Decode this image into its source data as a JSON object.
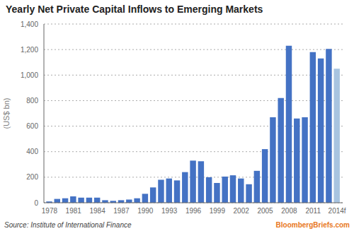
{
  "chart_data": {
    "type": "bar",
    "title": "Yearly Net Private Capital Inflows to Emerging Markets",
    "ylabel": "(US$ bn)",
    "annotations": [
      "Source: Institute of International Finance",
      "BloombergBriefs.com"
    ],
    "x": [
      1978,
      1979,
      1980,
      1981,
      1982,
      1983,
      1984,
      1985,
      1986,
      1987,
      1988,
      1989,
      1990,
      1991,
      1992,
      1993,
      1994,
      1995,
      1996,
      1997,
      1998,
      1999,
      2000,
      2001,
      2002,
      2003,
      2004,
      2005,
      2006,
      2007,
      2008,
      2009,
      2010,
      2011,
      2012,
      2013,
      2014
    ],
    "values": [
      10,
      30,
      35,
      50,
      40,
      40,
      40,
      20,
      15,
      20,
      25,
      35,
      70,
      120,
      180,
      190,
      175,
      240,
      330,
      325,
      200,
      155,
      205,
      215,
      190,
      145,
      250,
      420,
      670,
      820,
      1230,
      660,
      670,
      1180,
      1130,
      1205,
      1050
    ],
    "colors": [
      "#4472C4",
      "#4472C4",
      "#4472C4",
      "#4472C4",
      "#4472C4",
      "#4472C4",
      "#4472C4",
      "#4472C4",
      "#4472C4",
      "#4472C4",
      "#4472C4",
      "#4472C4",
      "#4472C4",
      "#4472C4",
      "#4472C4",
      "#4472C4",
      "#4472C4",
      "#4472C4",
      "#4472C4",
      "#4472C4",
      "#4472C4",
      "#4472C4",
      "#4472C4",
      "#4472C4",
      "#4472C4",
      "#4472C4",
      "#4472C4",
      "#4472C4",
      "#4472C4",
      "#4472C4",
      "#4472C4",
      "#4472C4",
      "#4472C4",
      "#4472C4",
      "#4472C4",
      "#4472C4",
      "#A8C4E0"
    ],
    "xlim": [
      1977.3,
      2014.7
    ],
    "xticks": [
      1978,
      1981,
      1984,
      1987,
      1990,
      1993,
      1996,
      1999,
      2002,
      2005,
      2008,
      2011,
      {
        "value": 2014,
        "label": "2014f"
      }
    ],
    "ylim": [
      0,
      1400
    ],
    "yticks": [
      0,
      200,
      400,
      600,
      800,
      {
        "value": 1000,
        "label": "1,000"
      },
      {
        "value": 1200,
        "label": "1,200"
      },
      {
        "value": 1400,
        "label": "1,400"
      }
    ],
    "grid": true
  }
}
